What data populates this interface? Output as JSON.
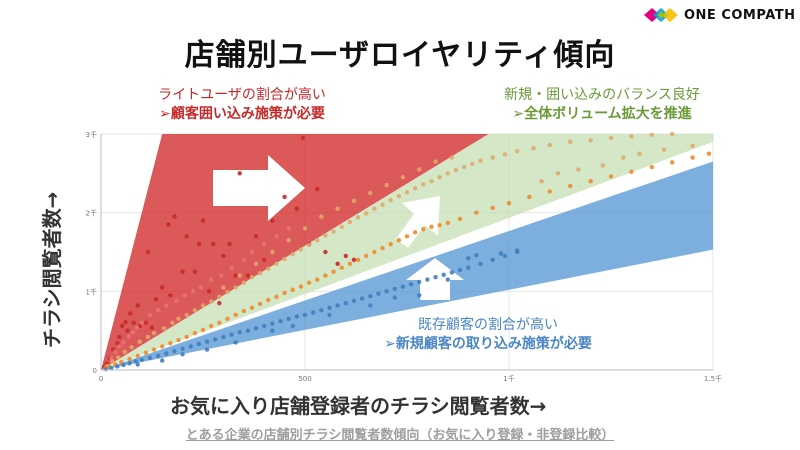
{
  "brand": {
    "name": "ONE COMPATH"
  },
  "title": "店舗別ユーザロイヤリティ傾向",
  "annotations": {
    "red": {
      "line1": "ライトユーザの割合が高い",
      "line2": "➢顧客囲い込み施策が必要",
      "color": "#c62828"
    },
    "green": {
      "line1": "新規・囲い込みのバランス良好",
      "line2": "➢全体ボリューム拡大を推進",
      "color": "#6a9a37"
    },
    "blue": {
      "line1": "既存顧客の割合が高い",
      "line2": "➢新規顧客の取り込み施策が必要",
      "color": "#4a86c5"
    }
  },
  "caption": "とある企業の店舗別チラシ閲覧者数傾向（お気に入り登録・非登録比較）",
  "chart_data": {
    "type": "scatter",
    "xlabel": "お気に入り店舗登録者のチラシ閲覧者数→",
    "ylabel": "チラシ閲覧者数→",
    "xlim": [
      0,
      1500
    ],
    "ylim": [
      0,
      3000
    ],
    "x_ticks": [
      {
        "v": 0,
        "label": "0"
      },
      {
        "v": 500,
        "label": "500"
      },
      {
        "v": 1000,
        "label": "1千"
      },
      {
        "v": 1500,
        "label": "1.5千"
      }
    ],
    "y_ticks": [
      {
        "v": 0,
        "label": "0"
      },
      {
        "v": 1000,
        "label": "1千"
      },
      {
        "v": 2000,
        "label": "2千"
      },
      {
        "v": 3000,
        "label": "3千"
      }
    ],
    "grid": true,
    "bands": [
      {
        "name": "red",
        "color": "#d32f2f",
        "points": [
          [
            0,
            0
          ],
          [
            150,
            3000
          ],
          [
            950,
            3000
          ]
        ]
      },
      {
        "name": "green",
        "color": "#c5e0b4",
        "points": [
          [
            0,
            0
          ],
          [
            950,
            3000
          ],
          [
            1500,
            3000
          ],
          [
            1500,
            2900
          ]
        ]
      },
      {
        "name": "blue",
        "color": "#5b9bd5",
        "points": [
          [
            0,
            0
          ],
          [
            1500,
            2650
          ],
          [
            1500,
            1530
          ]
        ]
      }
    ],
    "series": [
      {
        "color": "#c62828",
        "points": [
          [
            8,
            40
          ],
          [
            14,
            80
          ],
          [
            22,
            150
          ],
          [
            30,
            260
          ],
          [
            40,
            340
          ],
          [
            45,
            420
          ],
          [
            52,
            560
          ],
          [
            60,
            610
          ],
          [
            65,
            500
          ],
          [
            72,
            720
          ],
          [
            80,
            600
          ],
          [
            90,
            820
          ],
          [
            95,
            560
          ],
          [
            110,
            600
          ],
          [
            115,
            1500
          ],
          [
            125,
            540
          ],
          [
            135,
            900
          ],
          [
            150,
            1050
          ],
          [
            165,
            1850
          ],
          [
            170,
            950
          ],
          [
            180,
            1950
          ],
          [
            200,
            1250
          ],
          [
            210,
            1700
          ],
          [
            230,
            1250
          ],
          [
            240,
            1600
          ],
          [
            250,
            1900
          ],
          [
            265,
            1000
          ],
          [
            275,
            1600
          ],
          [
            290,
            850
          ],
          [
            300,
            1450
          ],
          [
            315,
            1600
          ],
          [
            330,
            1200
          ],
          [
            340,
            2500
          ],
          [
            360,
            1200
          ],
          [
            380,
            1700
          ],
          [
            400,
            1400
          ],
          [
            420,
            1900
          ],
          [
            450,
            2200
          ],
          [
            480,
            2050
          ],
          [
            495,
            2950
          ],
          [
            510,
            1600
          ],
          [
            530,
            2300
          ],
          [
            550,
            1500
          ],
          [
            580,
            1350
          ],
          [
            600,
            1450
          ],
          [
            620,
            1400
          ]
        ]
      },
      {
        "color": "#e57373",
        "points": [
          [
            25,
            150
          ],
          [
            35,
            230
          ],
          [
            45,
            300
          ],
          [
            55,
            350
          ],
          [
            68,
            430
          ],
          [
            78,
            480
          ],
          [
            88,
            540
          ],
          [
            100,
            600
          ],
          [
            120,
            700
          ],
          [
            140,
            760
          ],
          [
            160,
            820
          ],
          [
            185,
            880
          ],
          [
            205,
            950
          ],
          [
            225,
            1000
          ],
          [
            245,
            1050
          ],
          [
            270,
            1150
          ],
          [
            295,
            1200
          ],
          [
            320,
            1300
          ],
          [
            350,
            1400
          ],
          [
            370,
            1500
          ],
          [
            400,
            1600
          ],
          [
            430,
            1700
          ],
          [
            460,
            1800
          ]
        ]
      },
      {
        "color": "#e0a86a",
        "points": [
          [
            15,
            50
          ],
          [
            28,
            110
          ],
          [
            42,
            160
          ],
          [
            58,
            230
          ],
          [
            75,
            290
          ],
          [
            95,
            360
          ],
          [
            115,
            420
          ],
          [
            130,
            470
          ],
          [
            155,
            530
          ],
          [
            175,
            600
          ],
          [
            190,
            650
          ],
          [
            210,
            700
          ],
          [
            230,
            760
          ],
          [
            250,
            820
          ],
          [
            270,
            870
          ],
          [
            290,
            930
          ],
          [
            310,
            990
          ],
          [
            330,
            1050
          ],
          [
            350,
            1110
          ],
          [
            370,
            1180
          ],
          [
            390,
            1230
          ],
          [
            410,
            1290
          ],
          [
            430,
            1350
          ],
          [
            450,
            1410
          ],
          [
            470,
            1470
          ],
          [
            490,
            1530
          ],
          [
            510,
            1590
          ],
          [
            530,
            1650
          ],
          [
            550,
            1710
          ],
          [
            570,
            1760
          ],
          [
            590,
            1820
          ],
          [
            610,
            1880
          ],
          [
            630,
            1940
          ],
          [
            650,
            1990
          ],
          [
            670,
            2050
          ],
          [
            690,
            2100
          ],
          [
            710,
            2160
          ],
          [
            730,
            2210
          ],
          [
            750,
            2260
          ],
          [
            770,
            2310
          ],
          [
            790,
            2360
          ],
          [
            810,
            2400
          ],
          [
            830,
            2450
          ],
          [
            850,
            2500
          ],
          [
            870,
            2540
          ],
          [
            890,
            2580
          ],
          [
            910,
            2620
          ],
          [
            930,
            2660
          ],
          [
            960,
            2700
          ],
          [
            990,
            2740
          ],
          [
            1020,
            2780
          ],
          [
            1060,
            2820
          ],
          [
            1100,
            2860
          ],
          [
            1150,
            2900
          ],
          [
            1200,
            2920
          ],
          [
            1250,
            2950
          ],
          [
            1300,
            2970
          ],
          [
            1350,
            2990
          ],
          [
            1400,
            3000
          ],
          [
            300,
            1050
          ],
          [
            340,
            1200
          ],
          [
            380,
            1350
          ],
          [
            420,
            1500
          ],
          [
            460,
            1650
          ],
          [
            500,
            1800
          ],
          [
            540,
            1950
          ],
          [
            580,
            2050
          ],
          [
            620,
            2150
          ],
          [
            660,
            2250
          ],
          [
            700,
            2350
          ],
          [
            740,
            2450
          ],
          [
            780,
            2550
          ],
          [
            820,
            2650
          ],
          [
            860,
            2700
          ],
          [
            1230,
            2600
          ],
          [
            1280,
            2700
          ],
          [
            1320,
            2750
          ],
          [
            1380,
            2800
          ],
          [
            1450,
            2850
          ],
          [
            1080,
            2400
          ],
          [
            1120,
            2500
          ],
          [
            1170,
            2550
          ]
        ]
      },
      {
        "color": "#f0892e",
        "points": [
          [
            10,
            20
          ],
          [
            20,
            40
          ],
          [
            35,
            70
          ],
          [
            50,
            100
          ],
          [
            70,
            140
          ],
          [
            90,
            180
          ],
          [
            110,
            220
          ],
          [
            130,
            260
          ],
          [
            150,
            300
          ],
          [
            170,
            340
          ],
          [
            190,
            380
          ],
          [
            210,
            420
          ],
          [
            230,
            470
          ],
          [
            250,
            510
          ],
          [
            270,
            560
          ],
          [
            290,
            600
          ],
          [
            310,
            650
          ],
          [
            330,
            700
          ],
          [
            350,
            750
          ],
          [
            370,
            790
          ],
          [
            390,
            840
          ],
          [
            410,
            890
          ],
          [
            430,
            930
          ],
          [
            450,
            980
          ],
          [
            470,
            1020
          ],
          [
            490,
            1060
          ],
          [
            510,
            1110
          ],
          [
            530,
            1150
          ],
          [
            550,
            1200
          ],
          [
            570,
            1250
          ],
          [
            590,
            1300
          ],
          [
            610,
            1350
          ],
          [
            630,
            1400
          ],
          [
            650,
            1450
          ],
          [
            670,
            1500
          ],
          [
            690,
            1550
          ],
          [
            710,
            1600
          ],
          [
            730,
            1650
          ],
          [
            750,
            1700
          ],
          [
            770,
            1750
          ],
          [
            790,
            1790
          ],
          [
            810,
            1820
          ],
          [
            830,
            1840
          ],
          [
            850,
            1870
          ],
          [
            880,
            1920
          ],
          [
            920,
            2000
          ],
          [
            960,
            2060
          ],
          [
            1000,
            2120
          ],
          [
            1050,
            2200
          ],
          [
            1100,
            2270
          ],
          [
            1150,
            2340
          ],
          [
            1200,
            2400
          ],
          [
            1250,
            2460
          ],
          [
            1300,
            2520
          ],
          [
            1350,
            2580
          ],
          [
            1400,
            2640
          ],
          [
            1450,
            2700
          ],
          [
            1490,
            2750
          ]
        ]
      },
      {
        "color": "#3f7fc0",
        "points": [
          [
            12,
            10
          ],
          [
            25,
            25
          ],
          [
            40,
            45
          ],
          [
            55,
            65
          ],
          [
            70,
            85
          ],
          [
            85,
            110
          ],
          [
            100,
            130
          ],
          [
            120,
            155
          ],
          [
            140,
            180
          ],
          [
            160,
            210
          ],
          [
            180,
            240
          ],
          [
            200,
            270
          ],
          [
            220,
            300
          ],
          [
            240,
            330
          ],
          [
            260,
            360
          ],
          [
            280,
            390
          ],
          [
            300,
            420
          ],
          [
            320,
            450
          ],
          [
            340,
            480
          ],
          [
            360,
            500
          ],
          [
            380,
            530
          ],
          [
            400,
            560
          ],
          [
            420,
            590
          ],
          [
            440,
            620
          ],
          [
            460,
            650
          ],
          [
            480,
            680
          ],
          [
            500,
            700
          ],
          [
            520,
            730
          ],
          [
            540,
            760
          ],
          [
            560,
            790
          ],
          [
            580,
            820
          ],
          [
            600,
            850
          ],
          [
            620,
            880
          ],
          [
            640,
            910
          ],
          [
            660,
            940
          ],
          [
            680,
            970
          ],
          [
            700,
            1000
          ],
          [
            720,
            1030
          ],
          [
            740,
            1060
          ],
          [
            760,
            1090
          ],
          [
            780,
            1120
          ],
          [
            800,
            1150
          ],
          [
            820,
            1180
          ],
          [
            840,
            1210
          ],
          [
            860,
            1240
          ],
          [
            880,
            1270
          ],
          [
            900,
            1300
          ],
          [
            930,
            1350
          ],
          [
            960,
            1400
          ],
          [
            990,
            1450
          ],
          [
            1020,
            1500
          ],
          [
            200,
            200
          ],
          [
            260,
            260
          ],
          [
            330,
            350
          ],
          [
            420,
            500
          ],
          [
            470,
            560
          ],
          [
            560,
            700
          ],
          [
            660,
            820
          ],
          [
            720,
            920
          ],
          [
            780,
            950
          ],
          [
            850,
            1150
          ],
          [
            900,
            1420
          ],
          [
            920,
            1460
          ],
          [
            980,
            1480
          ],
          [
            1020,
            1520
          ],
          [
            150,
            120
          ],
          [
            90,
            70
          ]
        ]
      }
    ]
  }
}
